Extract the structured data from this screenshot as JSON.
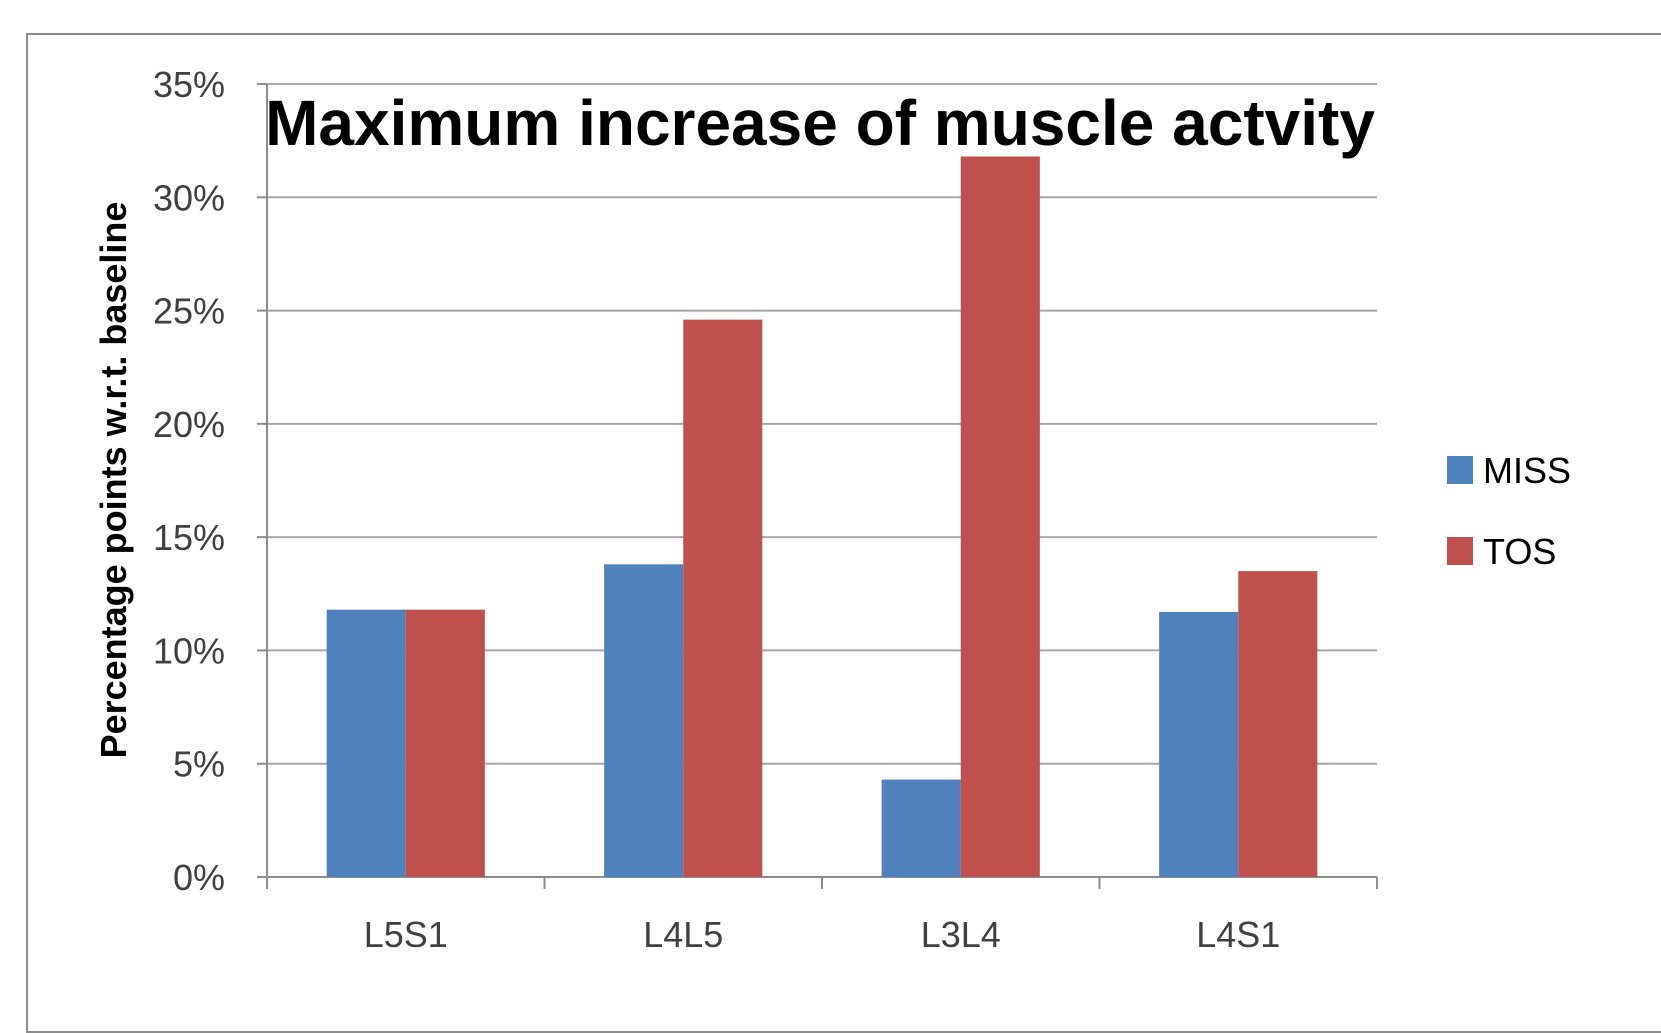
{
  "chart_data": {
    "type": "bar",
    "title": "Maximum increase of muscle actvity",
    "ylabel": "Percentage points w.r.t. baseline",
    "xlabel": "",
    "categories": [
      "L5S1",
      "L4L5",
      "L3L4",
      "L4S1"
    ],
    "series": [
      {
        "name": "MISS",
        "color": "#4f81bd",
        "values": [
          0.118,
          0.138,
          0.043,
          0.117
        ]
      },
      {
        "name": "TOS",
        "color": "#c0504d",
        "values": [
          0.118,
          0.246,
          0.318,
          0.135
        ]
      }
    ],
    "ylim": [
      0,
      0.35
    ],
    "yticks": [
      0,
      0.05,
      0.1,
      0.15,
      0.2,
      0.25,
      0.3,
      0.35
    ],
    "ytick_labels": [
      "0%",
      "5%",
      "10%",
      "15%",
      "20%",
      "25%",
      "30%",
      "35%"
    ],
    "grid": true,
    "legend": "right"
  }
}
